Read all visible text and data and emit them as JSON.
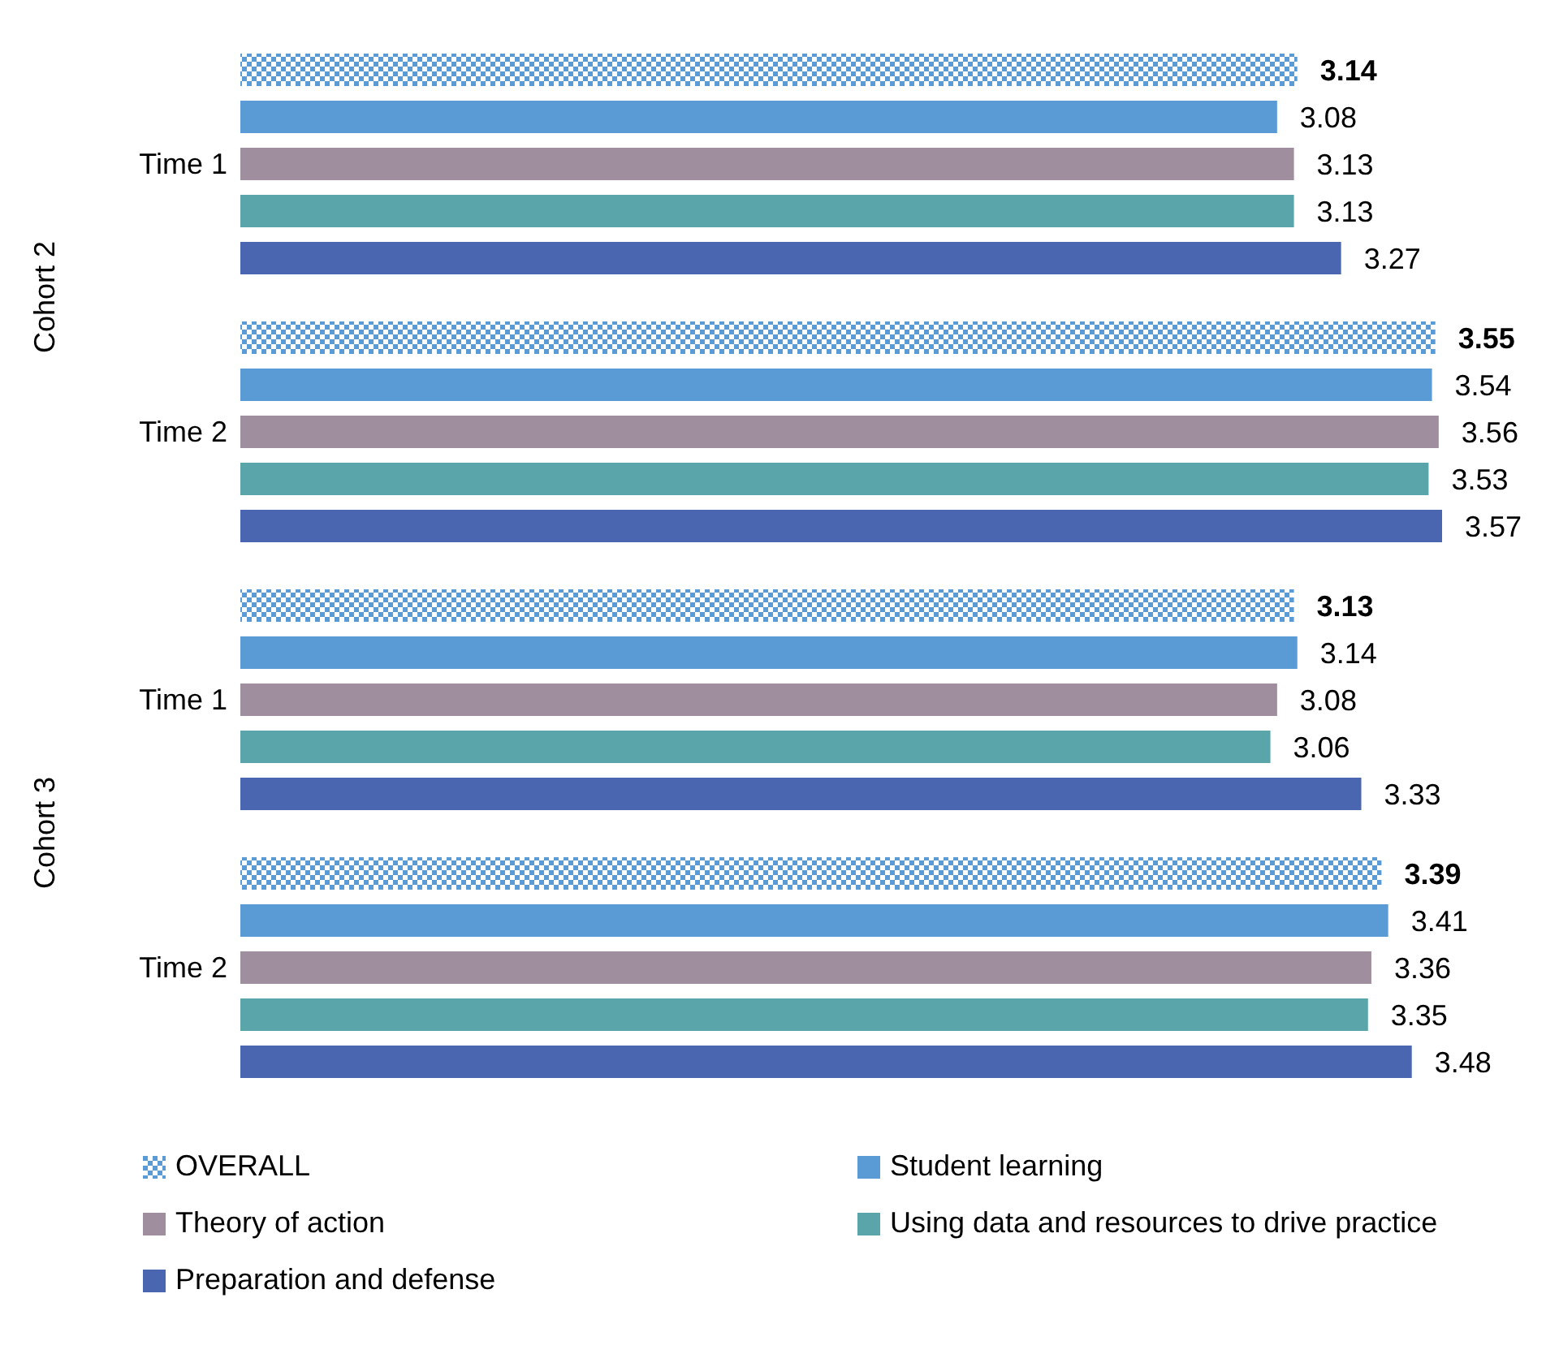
{
  "chart_data": {
    "type": "bar",
    "orientation": "horizontal",
    "categories": [
      "Time 1",
      "Time 2",
      "Time 1",
      "Time 2"
    ],
    "annotations": [
      "Cohort 2",
      "Cohort 3"
    ],
    "series": [
      {
        "name": "OVERALL",
        "color": "#5b9bd5",
        "values": [
          3.14,
          3.55,
          3.13,
          3.39
        ]
      },
      {
        "name": "Student learning",
        "color": "#5b9bd5",
        "values": [
          3.08,
          3.54,
          3.14,
          3.41
        ]
      },
      {
        "name": "Theory of action",
        "color": "#9e8e9e",
        "values": [
          3.13,
          3.56,
          3.08,
          3.36
        ]
      },
      {
        "name": "Using data and resources to drive practice",
        "color": "#5aa5aa",
        "values": [
          3.13,
          3.53,
          3.06,
          3.35
        ]
      },
      {
        "name": "Preparation and defense",
        "color": "#4a66b0",
        "values": [
          3.27,
          3.57,
          3.33,
          3.48
        ]
      }
    ],
    "tick_labels": "y",
    "data_labels": true,
    "legend": "bottom",
    "grid": false
  }
}
